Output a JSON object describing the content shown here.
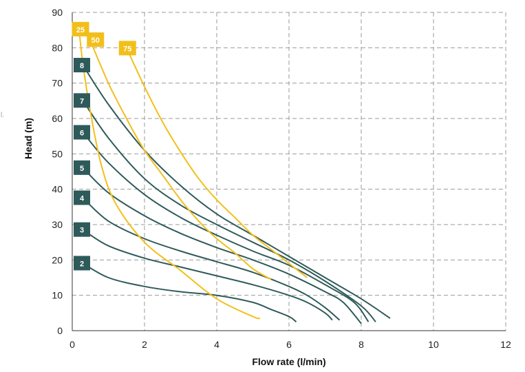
{
  "edge_mark": "l.",
  "chart_data": {
    "type": "line",
    "xlabel": "Flow rate (l/min)",
    "ylabel": "Head (m)",
    "xlim": [
      0,
      12
    ],
    "ylim": [
      0,
      90
    ],
    "x_ticks": [
      "0",
      "2",
      "4",
      "6",
      "8",
      "10",
      "12"
    ],
    "y_ticks": [
      "0",
      "10",
      "20",
      "30",
      "40",
      "50",
      "60",
      "70",
      "80",
      "90"
    ],
    "grid": true,
    "colors": {
      "stage": "#2e5a5a",
      "efficiency": "#f2bf1a",
      "grid": "#999999"
    },
    "series": [
      {
        "name": "2",
        "group": "stage",
        "x": [
          0.3,
          1,
          2,
          3,
          4,
          5,
          5.5,
          6,
          6.2
        ],
        "y": [
          19,
          15,
          12.5,
          11,
          10,
          8,
          6,
          4,
          2.5
        ]
      },
      {
        "name": "3",
        "group": "stage",
        "x": [
          0.3,
          1,
          2,
          3,
          4,
          5,
          6,
          6.5,
          7,
          7.2
        ],
        "y": [
          28.5,
          24,
          20.5,
          18,
          15.5,
          13,
          10,
          8,
          5,
          3
        ]
      },
      {
        "name": "4",
        "group": "stage",
        "x": [
          0.3,
          1,
          2,
          3,
          4,
          5,
          6,
          6.5,
          7,
          7.4
        ],
        "y": [
          37.5,
          31,
          26,
          22.5,
          19.5,
          16.5,
          12.5,
          10,
          6.5,
          3
        ]
      },
      {
        "name": "5",
        "group": "stage",
        "x": [
          0.3,
          1,
          2,
          3,
          4,
          5,
          6,
          7,
          7.5,
          8
        ],
        "y": [
          46,
          39,
          32.5,
          27.5,
          23.5,
          20,
          16,
          11,
          8,
          2
        ]
      },
      {
        "name": "6",
        "group": "stage",
        "x": [
          0.3,
          1,
          2,
          3,
          4,
          5,
          6,
          7,
          7.8,
          8.2
        ],
        "y": [
          56,
          47.5,
          38.5,
          32,
          27,
          22.5,
          18.5,
          13,
          8,
          2.5
        ]
      },
      {
        "name": "7",
        "group": "stage",
        "x": [
          0.3,
          1,
          2,
          3,
          4,
          5,
          6,
          7,
          8,
          8.4
        ],
        "y": [
          65,
          54.5,
          43,
          35.5,
          30,
          25,
          20,
          14,
          7,
          2.5
        ]
      },
      {
        "name": "8",
        "group": "stage",
        "x": [
          0.3,
          1,
          2,
          3,
          4,
          5,
          6,
          7,
          8,
          8.8
        ],
        "y": [
          75,
          64,
          51,
          41,
          33,
          27,
          21,
          15,
          9,
          3.5
        ]
      },
      {
        "name": "25",
        "group": "efficiency",
        "x": [
          0.2,
          0.3,
          0.5,
          0.8,
          1.2,
          2,
          3,
          4,
          5,
          5.2
        ],
        "y": [
          84,
          75,
          62,
          47,
          36,
          25,
          17,
          9,
          4,
          3.5
        ]
      },
      {
        "name": "50",
        "group": "efficiency",
        "x": [
          0.5,
          1,
          1.5,
          2,
          2.5,
          3,
          3.5,
          4,
          4.5,
          5,
          5.5
        ],
        "y": [
          82,
          70,
          60,
          51,
          44,
          37,
          31,
          26,
          22,
          17.5,
          14.5
        ]
      },
      {
        "name": "75",
        "group": "efficiency",
        "x": [
          1.5,
          2,
          2.5,
          3,
          3.5,
          4,
          4.5,
          5,
          5.5,
          6,
          6.5
        ],
        "y": [
          80,
          69,
          59,
          50.5,
          43,
          37,
          32,
          27,
          23,
          19,
          15
        ]
      }
    ]
  }
}
